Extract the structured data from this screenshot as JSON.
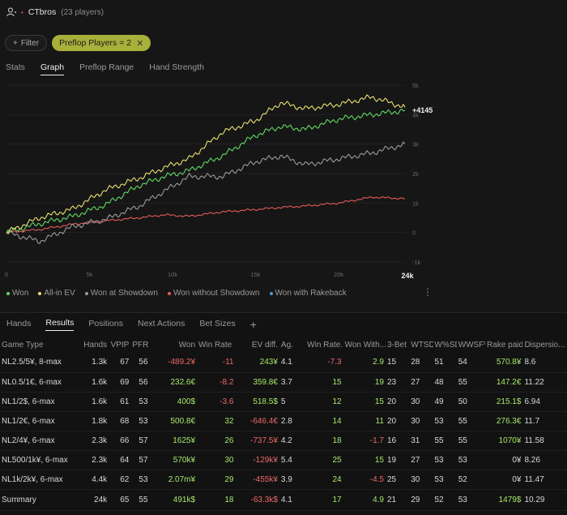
{
  "header": {
    "player_name": "CTbros",
    "player_count": "(23 players)"
  },
  "filters": {
    "filter_label": "Filter",
    "chip_label": "Preflop Players = 2"
  },
  "tabs": [
    "Stats",
    "Graph",
    "Preflop Range",
    "Hand Strength"
  ],
  "bottom_tabs": [
    "Hands",
    "Results",
    "Positions",
    "Next Actions",
    "Bet Sizes"
  ],
  "legend": [
    {
      "label": "Won",
      "color": "#62d862"
    },
    {
      "label": "All-in EV",
      "color": "#e8e070"
    },
    {
      "label": "Won at Showdown",
      "color": "#9a9a9a"
    },
    {
      "label": "Won without Showdown",
      "color": "#e25a5a"
    },
    {
      "label": "Won with Rakeback",
      "color": "#4a9ae0"
    }
  ],
  "chart_data": {
    "type": "line",
    "x_ticks": [
      "0",
      "5k",
      "10k",
      "15k",
      "20k",
      "24k"
    ],
    "x_tick_values": [
      0,
      5000,
      10000,
      15000,
      20000,
      24000
    ],
    "y_ticks": [
      "5k",
      "4k",
      "3k",
      "2k",
      "1k",
      "0",
      "-1k"
    ],
    "y_tick_values": [
      5000,
      4000,
      3000,
      2000,
      1000,
      0,
      -1000
    ],
    "xlim": [
      0,
      24000
    ],
    "ylim": [
      -1000,
      5000
    ],
    "end_label": "+4145",
    "series": [
      {
        "name": "All-in EV",
        "color": "#e8e070",
        "x": [
          0,
          2000,
          4000,
          6000,
          8000,
          9500,
          11000,
          13000,
          15000,
          16500,
          18000,
          20000,
          22000,
          24000
        ],
        "values": [
          0,
          500,
          800,
          1450,
          1850,
          2200,
          2500,
          3400,
          3800,
          4400,
          4200,
          4350,
          4600,
          4250
        ]
      },
      {
        "name": "Won",
        "color": "#62d862",
        "x": [
          0,
          2000,
          4000,
          6000,
          8000,
          9500,
          11000,
          13000,
          15000,
          16500,
          18000,
          20000,
          22000,
          24000
        ],
        "values": [
          0,
          300,
          550,
          950,
          1600,
          1900,
          2100,
          2600,
          3300,
          3600,
          3500,
          3850,
          4000,
          4145
        ]
      },
      {
        "name": "Won at Showdown",
        "color": "#9a9a9a",
        "x": [
          0,
          2000,
          4000,
          6000,
          8000,
          9500,
          11000,
          13000,
          15000,
          16500,
          18000,
          20000,
          22000,
          24000
        ],
        "values": [
          0,
          -300,
          200,
          450,
          900,
          1400,
          1900,
          1900,
          2400,
          2600,
          2300,
          2500,
          2700,
          3000
        ]
      },
      {
        "name": "Won without Showdown",
        "color": "#e25a5a",
        "x": [
          0,
          2000,
          4000,
          6000,
          8000,
          9500,
          11000,
          13000,
          15000,
          16500,
          18000,
          20000,
          22000,
          24000
        ],
        "values": [
          0,
          100,
          280,
          400,
          500,
          600,
          550,
          700,
          780,
          850,
          900,
          1000,
          1200,
          1150
        ]
      }
    ]
  },
  "table": {
    "headers": [
      "Game Type",
      "Hands",
      "VPIP",
      "PFR",
      "Won",
      "Win Rate ...",
      "EV diff.",
      "Ag.",
      "Win Rate...",
      "Won With...",
      "3-Bet",
      "WTSD",
      "W%SD",
      "WWSF%",
      "Rake paid",
      "Dispersio..."
    ],
    "rows": [
      [
        "NL2.5/5¥, 8-max",
        "1.3k",
        "67",
        "56",
        "-489.2¥",
        "-11",
        "243¥",
        "4.1",
        "-7.3",
        "2.9",
        "15",
        "28",
        "51",
        "54",
        "570.8¥",
        "8.6"
      ],
      [
        "NL0.5/1€, 6-max",
        "1.6k",
        "69",
        "56",
        "232.6€",
        "-8.2",
        "359.8€",
        "3.7",
        "15",
        "19",
        "23",
        "27",
        "48",
        "55",
        "147.2€",
        "11.22"
      ],
      [
        "NL1/2$, 6-max",
        "1.6k",
        "61",
        "53",
        "400$",
        "-3.6",
        "518.5$",
        "5",
        "12",
        "15",
        "20",
        "30",
        "49",
        "50",
        "215.1$",
        "6.94"
      ],
      [
        "NL1/2€, 6-max",
        "1.8k",
        "68",
        "53",
        "500.8€",
        "32",
        "-646.4€",
        "2.8",
        "14",
        "11",
        "20",
        "30",
        "53",
        "55",
        "276.3€",
        "11.7"
      ],
      [
        "NL2/4¥, 6-max",
        "2.3k",
        "66",
        "57",
        "1625¥",
        "26",
        "-737.5¥",
        "4.2",
        "18",
        "-1.7",
        "16",
        "31",
        "55",
        "55",
        "1070¥",
        "11.58"
      ],
      [
        "NL500/1k¥, 6-max",
        "2.3k",
        "64",
        "57",
        "570k¥",
        "30",
        "-129k¥",
        "5.4",
        "25",
        "15",
        "19",
        "27",
        "53",
        "53",
        "0¥",
        "8.26"
      ],
      [
        "NL1k/2k¥, 6-max",
        "4.4k",
        "62",
        "53",
        "2.07m¥",
        "29",
        "-455k¥",
        "3.9",
        "24",
        "-4.5",
        "25",
        "30",
        "53",
        "52",
        "0¥",
        "11.47"
      ]
    ],
    "summary": [
      "Summary",
      "24k",
      "65",
      "55",
      "491k$",
      "18",
      "-63.3k$",
      "4.1",
      "17",
      "4.9",
      "21",
      "29",
      "52",
      "53",
      "1479$",
      "10.29"
    ]
  }
}
